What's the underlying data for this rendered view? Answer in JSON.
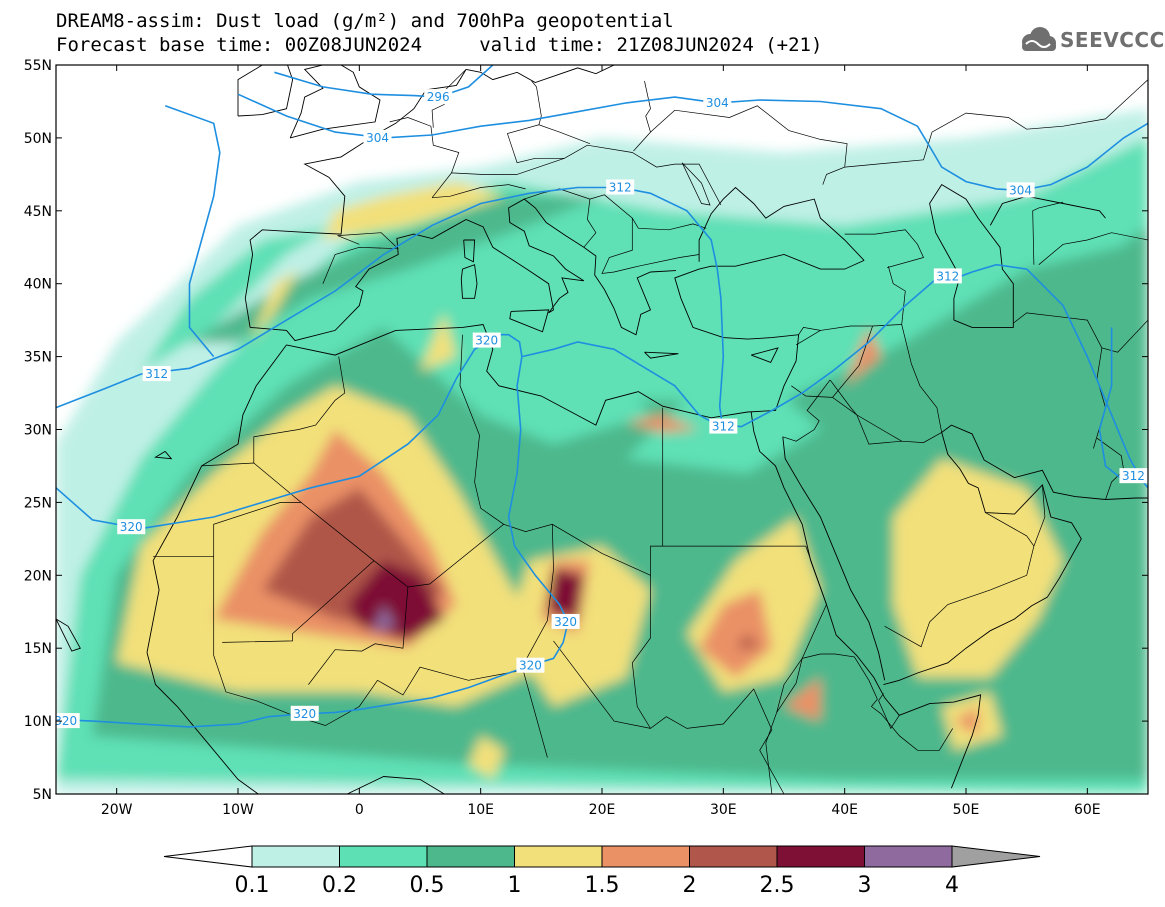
{
  "header": {
    "title_line1": "DREAM8-assim: Dust load (g/m²) and 700hPa geopotential",
    "title_line2": "Forecast base time: 00Z08JUN2024     valid time: 21Z08JUN2024 (+21)"
  },
  "logo": {
    "text": "SEEVCCC",
    "icon": "cloud-icon"
  },
  "map": {
    "lon_range": [
      -25,
      65
    ],
    "lat_range": [
      5,
      55
    ],
    "lat_ticks": [
      {
        "value": 55,
        "label": "55N"
      },
      {
        "value": 50,
        "label": "50N"
      },
      {
        "value": 45,
        "label": "45N"
      },
      {
        "value": 40,
        "label": "40N"
      },
      {
        "value": 35,
        "label": "35N"
      },
      {
        "value": 30,
        "label": "30N"
      },
      {
        "value": 25,
        "label": "25N"
      },
      {
        "value": 20,
        "label": "20N"
      },
      {
        "value": 15,
        "label": "15N"
      },
      {
        "value": 10,
        "label": "10N"
      },
      {
        "value": 5,
        "label": "5N"
      }
    ],
    "lon_ticks": [
      {
        "value": -20,
        "label": "20W"
      },
      {
        "value": -10,
        "label": "10W"
      },
      {
        "value": 0,
        "label": "0"
      },
      {
        "value": 10,
        "label": "10E"
      },
      {
        "value": 20,
        "label": "20E"
      },
      {
        "value": 30,
        "label": "30E"
      },
      {
        "value": 40,
        "label": "40E"
      },
      {
        "value": 50,
        "label": "50E"
      },
      {
        "value": 60,
        "label": "60E"
      }
    ],
    "contour_color": "#1e8fe0",
    "contour_labels": [
      {
        "text": "296",
        "lon": 6.5,
        "lat": 52.8
      },
      {
        "text": "304",
        "lon": 29.5,
        "lat": 52.4
      },
      {
        "text": "304",
        "lon": 1.5,
        "lat": 50.0
      },
      {
        "text": "312",
        "lon": 21.5,
        "lat": 46.6
      },
      {
        "text": "304",
        "lon": 54.5,
        "lat": 46.4
      },
      {
        "text": "312",
        "lon": 48.5,
        "lat": 40.5
      },
      {
        "text": "320",
        "lon": 10.5,
        "lat": 36.1
      },
      {
        "text": "312",
        "lon": -16.7,
        "lat": 33.8
      },
      {
        "text": "312",
        "lon": 30.0,
        "lat": 30.2
      },
      {
        "text": "312",
        "lon": 63.8,
        "lat": 26.8
      },
      {
        "text": "320",
        "lon": -18.8,
        "lat": 23.3
      },
      {
        "text": "320",
        "lon": 17.0,
        "lat": 16.8
      },
      {
        "text": "320",
        "lon": 14.1,
        "lat": 13.8
      },
      {
        "text": "320",
        "lon": -4.5,
        "lat": 10.5
      },
      {
        "text": "320",
        "lon": -24.2,
        "lat": 10.0
      }
    ]
  },
  "colorbar": {
    "labels": [
      "0.1",
      "0.2",
      "0.5",
      "1",
      "1.5",
      "2",
      "2.5",
      "3",
      "4"
    ],
    "colors": [
      "#bff0e6",
      "#5ee0b5",
      "#4db88c",
      "#f2e07a",
      "#ea9166",
      "#b0564a",
      "#7e0f35",
      "#8e6a9e"
    ],
    "underflow_color": "#ffffff",
    "overflow_color": "#a0a0a0"
  }
}
